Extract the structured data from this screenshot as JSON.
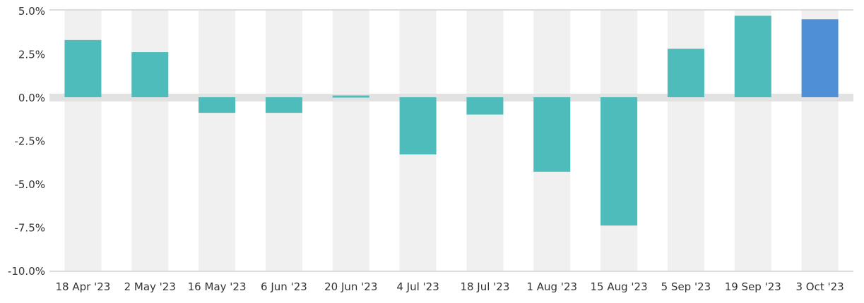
{
  "chart_data": {
    "type": "bar",
    "categories": [
      "18 Apr '23",
      "2 May '23",
      "16 May '23",
      "6 Jun '23",
      "20 Jun '23",
      "4 Jul '23",
      "18 Jul '23",
      "1 Aug '23",
      "15 Aug '23",
      "5 Sep '23",
      "19 Sep '23",
      "3 Oct '23"
    ],
    "values": [
      3.3,
      2.6,
      -0.9,
      -0.9,
      0.1,
      -3.3,
      -1.0,
      -4.3,
      -7.4,
      2.8,
      4.7,
      4.5
    ],
    "y_ticks": [
      5.0,
      2.5,
      0.0,
      -2.5,
      -5.0,
      -7.5,
      -10.0
    ],
    "y_tick_labels": [
      "5.0%",
      "2.5%",
      "0.0%",
      "-2.5%",
      "-5.0%",
      "-7.5%",
      "-10.0%"
    ],
    "ylim": [
      -10,
      5
    ],
    "title": "",
    "xlabel": "",
    "ylabel": "",
    "grid": "alternating vertical bands, zero line",
    "legend": "none",
    "colors": {
      "bar": "#4fbcbc",
      "bar_highlight": "#4f8fd6",
      "band": "#f0f0f0",
      "zero_line": "#e2e2e2",
      "axis_line": "#dcdcdc",
      "text": "#333333"
    },
    "highlight_index": 11
  }
}
